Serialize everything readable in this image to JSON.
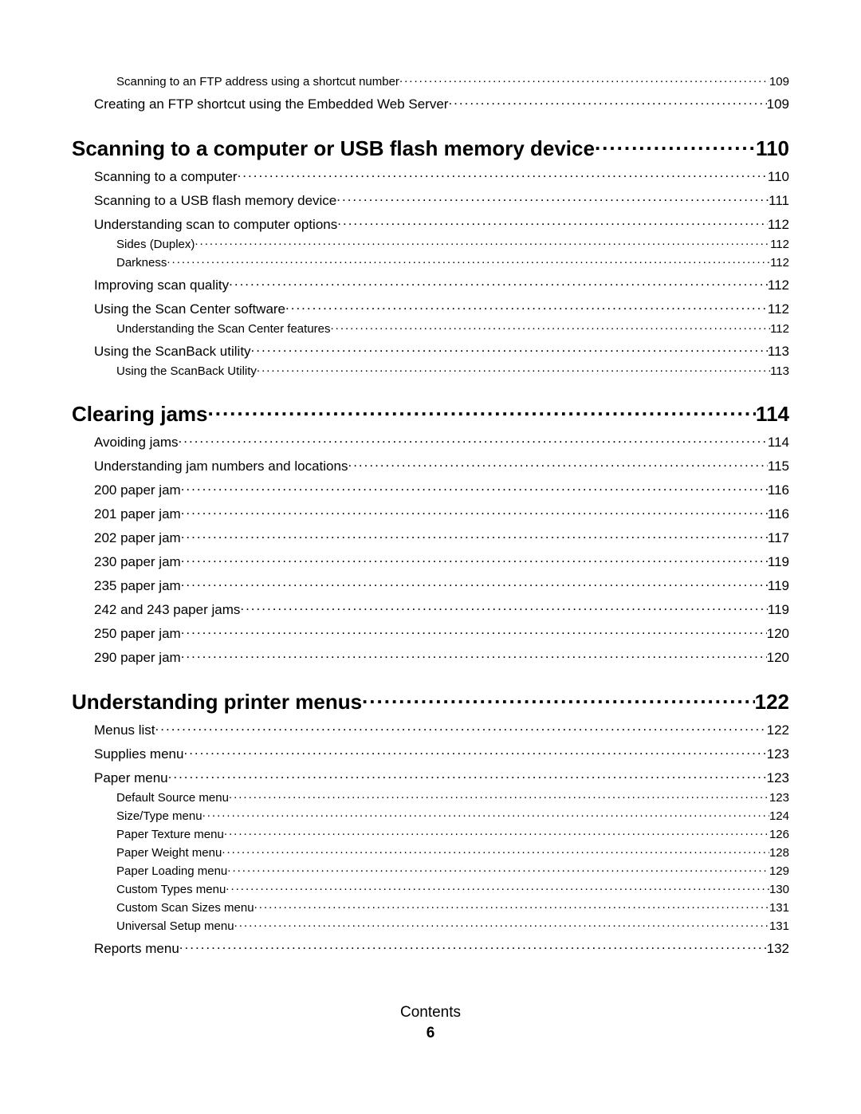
{
  "footer": {
    "label": "Contents",
    "page": "6"
  },
  "entries": [
    {
      "level": 2,
      "title": "Scanning to an FTP address using a shortcut number",
      "page": "109"
    },
    {
      "level": 1,
      "title": "Creating an FTP shortcut using the Embedded Web Server",
      "page": "109"
    },
    {
      "level": 0,
      "title": "Scanning to a computer or USB flash memory device",
      "page": "110"
    },
    {
      "level": 1,
      "title": "Scanning to a computer",
      "page": "110"
    },
    {
      "level": 1,
      "title": "Scanning to a USB flash memory device",
      "page": "111"
    },
    {
      "level": 1,
      "title": "Understanding scan to computer options",
      "page": "112"
    },
    {
      "level": 2,
      "title": "Sides (Duplex)",
      "page": "112"
    },
    {
      "level": 2,
      "title": "Darkness",
      "page": "112"
    },
    {
      "level": 1,
      "title": "Improving scan quality",
      "page": "112"
    },
    {
      "level": 1,
      "title": "Using the Scan Center software",
      "page": "112"
    },
    {
      "level": 2,
      "title": "Understanding the Scan Center features",
      "page": "112"
    },
    {
      "level": 1,
      "title": "Using the ScanBack utility",
      "page": "113"
    },
    {
      "level": 2,
      "title": "Using the ScanBack Utility",
      "page": "113"
    },
    {
      "level": 0,
      "title": "Clearing jams",
      "page": "114"
    },
    {
      "level": 1,
      "title": "Avoiding jams",
      "page": "114"
    },
    {
      "level": 1,
      "title": "Understanding jam numbers and locations",
      "page": "115"
    },
    {
      "level": 1,
      "title": "200 paper jam",
      "page": "116"
    },
    {
      "level": 1,
      "title": "201 paper jam",
      "page": "116"
    },
    {
      "level": 1,
      "title": "202 paper jam",
      "page": "117"
    },
    {
      "level": 1,
      "title": "230 paper jam",
      "page": "119"
    },
    {
      "level": 1,
      "title": "235 paper jam",
      "page": "119"
    },
    {
      "level": 1,
      "title": "242 and 243 paper jams",
      "page": "119"
    },
    {
      "level": 1,
      "title": "250 paper jam",
      "page": "120"
    },
    {
      "level": 1,
      "title": "290 paper jam",
      "page": "120"
    },
    {
      "level": 0,
      "title": "Understanding printer menus",
      "page": "122"
    },
    {
      "level": 1,
      "title": "Menus list",
      "page": "122"
    },
    {
      "level": 1,
      "title": "Supplies menu",
      "page": "123"
    },
    {
      "level": 1,
      "title": "Paper menu",
      "page": "123"
    },
    {
      "level": 2,
      "title": "Default Source menu",
      "page": "123"
    },
    {
      "level": 2,
      "title": "Size/Type menu",
      "page": "124"
    },
    {
      "level": 2,
      "title": "Paper Texture menu",
      "page": "126"
    },
    {
      "level": 2,
      "title": "Paper Weight menu",
      "page": "128"
    },
    {
      "level": 2,
      "title": "Paper Loading menu",
      "page": "129"
    },
    {
      "level": 2,
      "title": "Custom Types menu",
      "page": "130"
    },
    {
      "level": 2,
      "title": "Custom Scan Sizes menu",
      "page": "131"
    },
    {
      "level": 2,
      "title": "Universal Setup menu",
      "page": "131"
    },
    {
      "level": 1,
      "title": "Reports menu",
      "page": "132"
    }
  ]
}
